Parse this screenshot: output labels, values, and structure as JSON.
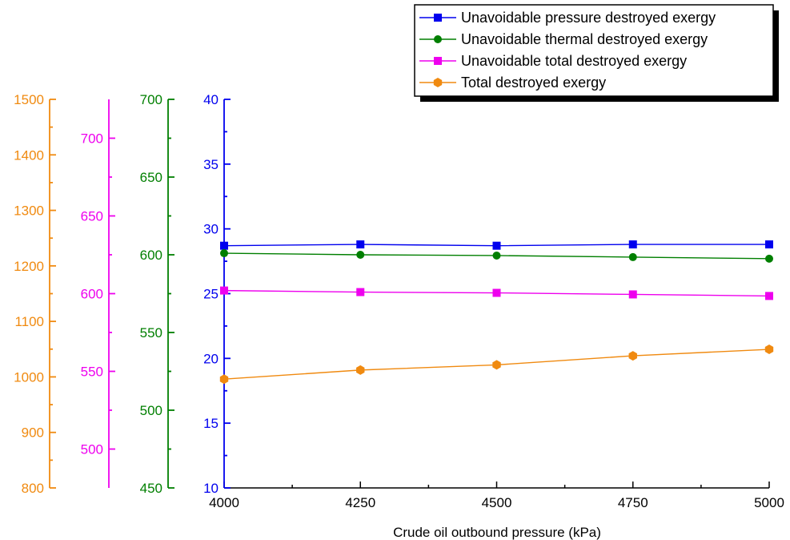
{
  "chart_data": {
    "type": "line",
    "title": "",
    "xlabel": "Crude oil outbound pressure (kPa)",
    "x": [
      4000,
      4250,
      4500,
      4750,
      5000
    ],
    "xlim": [
      4000,
      5000
    ],
    "xticks": [
      "4000",
      "4250",
      "4500",
      "4750",
      "5000"
    ],
    "legend_position": "top-right",
    "grid": false,
    "axes": [
      {
        "id": "blue",
        "color": "#0000ee",
        "ylim": [
          10,
          40
        ],
        "ticks": [
          10,
          15,
          20,
          25,
          30,
          35,
          40
        ]
      },
      {
        "id": "green",
        "color": "#007f00",
        "ylim": [
          450,
          700
        ],
        "ticks": [
          450,
          500,
          550,
          600,
          650,
          700
        ]
      },
      {
        "id": "magenta",
        "color": "#ee00ee",
        "ylim": [
          475,
          725
        ],
        "ticks": [
          500,
          550,
          600,
          650,
          700
        ]
      },
      {
        "id": "orange",
        "color": "#f08a10",
        "ylim": [
          800,
          1500
        ],
        "ticks": [
          800,
          900,
          1000,
          1100,
          1200,
          1300,
          1400,
          1500
        ]
      }
    ],
    "series": [
      {
        "name": "Unavoidable pressure destroyed exergy",
        "axis": "blue",
        "color": "#0000ee",
        "marker": "square",
        "values": [
          28.7,
          28.8,
          28.7,
          28.8,
          28.8
        ]
      },
      {
        "name": "Unavoidable thermal destroyed exergy",
        "axis": "green",
        "color": "#007f00",
        "marker": "circle",
        "values": [
          601,
          600,
          599.5,
          598.5,
          597.5
        ]
      },
      {
        "name": "Unavoidable total destroyed exergy",
        "axis": "magenta",
        "color": "#ee00ee",
        "marker": "square",
        "values": [
          602,
          601,
          600.5,
          599.5,
          598.5
        ]
      },
      {
        "name": "Total destroyed exergy",
        "axis": "blue",
        "color": "#f08a10",
        "marker": "hexagon",
        "values": [
          18.4,
          19.1,
          19.5,
          20.2,
          20.7
        ]
      }
    ]
  }
}
